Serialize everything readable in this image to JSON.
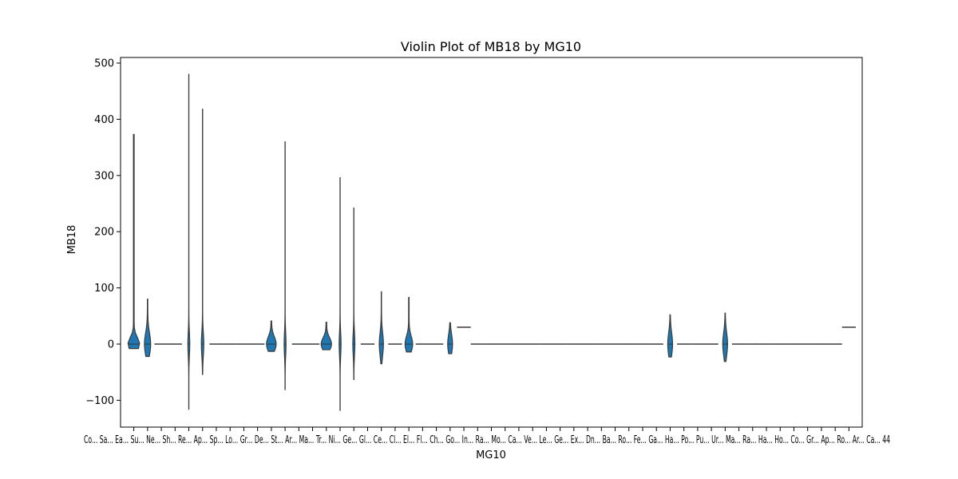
{
  "chart_data": {
    "type": "violin",
    "title": "Violin Plot of MB18 by MG10",
    "xlabel": "MG10",
    "ylabel": "MB18",
    "ylim": [
      -145,
      510
    ],
    "yticks": [
      -100,
      0,
      100,
      200,
      300,
      400,
      500
    ],
    "n_categories": 53,
    "x_tick_label_overlap": "Co... Sa... Ea... Su... Ne... Sh... Re... Ap... Sp... Lo... Gr... De... St... Ar... Ma... Tr... Ni... Ge... Gl... Ce... Cl... El... Fl... Ch... Go... In... Ra... Mo... Ca... Ve... Le... Ge... Ex... Dn... Ba... Ro... Fe... Ga... Ha... Po... Pu... Ur... Ma... Ra... Ha... Ho... Co... Gr... Ap... Ro... Ar... Ca... 44",
    "series": [
      {
        "values": [
          {
            "min": -8,
            "max": 373,
            "median": 0,
            "width": 0.85
          },
          {
            "min": -22,
            "max": 80,
            "median": 0,
            "width": 0.45
          },
          {
            "value": 0
          },
          {
            "value": 0
          },
          {
            "min": -116,
            "max": 480,
            "median": 0,
            "width": 0.12
          },
          {
            "min": -54,
            "max": 418,
            "median": 0,
            "width": 0.18
          },
          {
            "value": 0
          },
          {
            "value": 0
          },
          {
            "value": 0
          },
          {
            "value": 0
          },
          {
            "min": -13,
            "max": 41,
            "median": 0,
            "width": 0.7
          },
          {
            "min": -81,
            "max": 360,
            "median": 0,
            "width": 0.12
          },
          {
            "value": 0
          },
          {
            "value": 0
          },
          {
            "min": -10,
            "max": 39,
            "median": 0,
            "width": 0.75
          },
          {
            "min": -118,
            "max": 296,
            "median": 0,
            "width": 0.12
          },
          {
            "min": -63,
            "max": 242,
            "median": 0,
            "width": 0.15
          },
          {
            "value": 0
          },
          {
            "min": -35,
            "max": 93,
            "median": 0,
            "width": 0.3
          },
          {
            "value": 0
          },
          {
            "min": -14,
            "max": 83,
            "median": 0,
            "width": 0.55
          },
          {
            "value": 0
          },
          {
            "value": 0
          },
          {
            "min": -17,
            "max": 38,
            "median": 0,
            "width": 0.35
          },
          {
            "value": 30
          },
          {
            "value": 0
          },
          {
            "value": 0
          },
          {
            "value": 0
          },
          {
            "value": 0
          },
          {
            "value": 0
          },
          {
            "value": 0
          },
          {
            "value": 0
          },
          {
            "value": 0
          },
          {
            "value": 0
          },
          {
            "value": 0
          },
          {
            "value": 0
          },
          {
            "value": 0
          },
          {
            "value": 0
          },
          {
            "value": 0
          },
          {
            "min": -23,
            "max": 52,
            "median": 0,
            "width": 0.35
          },
          {
            "value": 0
          },
          {
            "value": 0
          },
          {
            "value": 0
          },
          {
            "min": -31,
            "max": 55,
            "median": 0,
            "width": 0.35
          },
          {
            "value": 0
          },
          {
            "value": 0
          },
          {
            "value": 0
          },
          {
            "value": 0
          },
          {
            "value": 0
          },
          {
            "value": 0
          },
          {
            "value": 0
          },
          {
            "value": 0
          },
          {
            "value": 30
          }
        ]
      }
    ],
    "colors": {
      "violin_fill": "#1f77b4",
      "violin_edge": "#3a3a3a"
    }
  }
}
